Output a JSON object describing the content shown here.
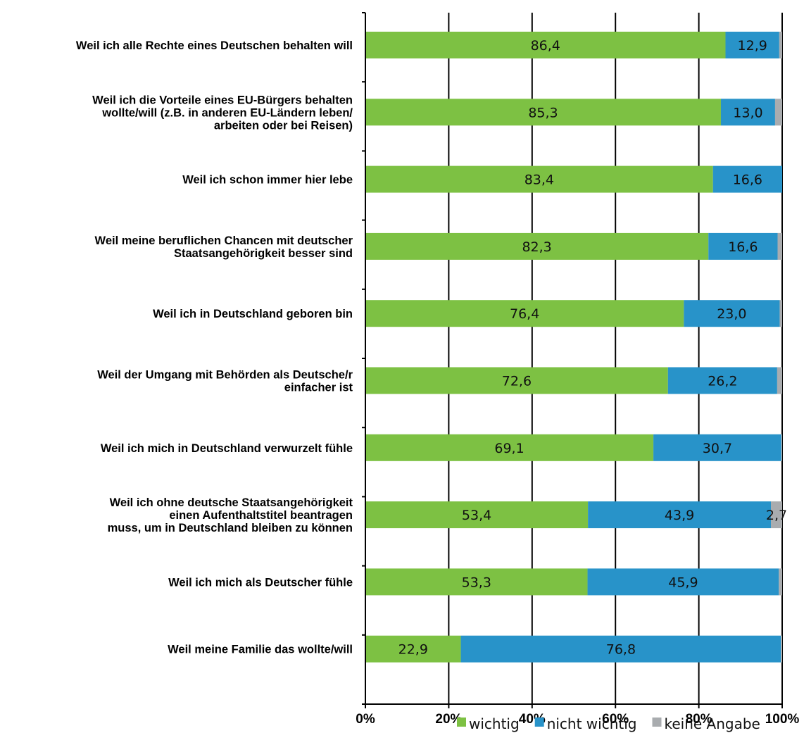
{
  "chart_data": {
    "type": "bar",
    "orientation": "horizontal",
    "stacked": true,
    "categories": [
      [
        "Weil ich alle Rechte eines Deutschen behalten will"
      ],
      [
        "Weil ich die Vorteile eines EU-Bürgers behalten",
        "wollte/will (z.B. in anderen EU-Ländern leben/",
        "arbeiten oder bei Reisen)"
      ],
      [
        "Weil ich schon immer hier lebe"
      ],
      [
        "Weil meine beruflichen Chancen mit deutscher",
        "Staatsangehörigkeit besser sind"
      ],
      [
        "Weil ich in Deutschland geboren bin"
      ],
      [
        "Weil der Umgang mit Behörden  als Deutsche/r",
        "einfacher ist"
      ],
      [
        "Weil ich mich in Deutschland verwurzelt fühle"
      ],
      [
        "Weil ich ohne deutsche Staatsangehörigkeit",
        "einen Aufenthaltstitel beantragen",
        "muss, um in Deutschland bleiben zu können"
      ],
      [
        "Weil ich mich als Deutscher fühle"
      ],
      [
        "Weil meine Familie das wollte/will"
      ]
    ],
    "series": [
      {
        "name": "wichtig",
        "color": "#7dc143",
        "values": [
          86.4,
          85.3,
          83.4,
          82.3,
          76.4,
          72.6,
          69.1,
          53.4,
          53.3,
          22.9
        ],
        "labels": [
          "86,4",
          "85,3",
          "83,4",
          "82,3",
          "76,4",
          "72,6",
          "69,1",
          "53,4",
          "53,3",
          "22,9"
        ]
      },
      {
        "name": "nicht wichtig",
        "color": "#2893c9",
        "values": [
          12.9,
          13.0,
          16.6,
          16.6,
          23.0,
          26.2,
          30.7,
          43.9,
          45.9,
          76.8
        ],
        "labels": [
          "12,9",
          "13,0",
          "16,6",
          "16,6",
          "23,0",
          "26,2",
          "30,7",
          "43,9",
          "45,9",
          "76,8"
        ]
      },
      {
        "name": "keine Angabe",
        "color": "#a9acaf",
        "values": [
          0.7,
          1.7,
          0.0,
          1.1,
          0.6,
          1.2,
          0.2,
          2.7,
          0.8,
          0.3
        ],
        "labels": [
          "",
          "",
          "",
          "",
          "",
          "",
          "",
          "2,7",
          "",
          ""
        ]
      }
    ],
    "xlim": [
      0,
      100
    ],
    "xticks": [
      "0%",
      "20%",
      "40%",
      "60%",
      "80%",
      "100%"
    ],
    "grid": "vertical",
    "legend": "bottom-right"
  }
}
